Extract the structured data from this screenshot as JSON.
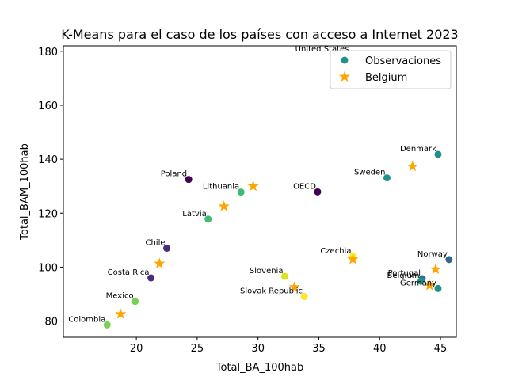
{
  "chart_data": {
    "type": "scatter",
    "title": "K-Means para el caso de los países con acceso a Internet 2023",
    "xlabel": "Total_BA_100hab",
    "ylabel": "Total_BAM_100hab",
    "xlim": [
      14,
      46.3
    ],
    "ylim": [
      74,
      182
    ],
    "xticks": [
      20,
      25,
      30,
      35,
      40,
      45
    ],
    "yticks": [
      80,
      100,
      120,
      140,
      160,
      180
    ],
    "grid": false,
    "legend": {
      "placement": "top-right",
      "entries": [
        {
          "label": "Observaciones",
          "marker": "circle",
          "color": "#21918c"
        },
        {
          "label": "Belgium",
          "marker": "star",
          "color": "#ffa500"
        }
      ]
    },
    "observations": [
      {
        "country": "Colombia",
        "x": 17.6,
        "y": 78.6,
        "color": "#7ad151"
      },
      {
        "country": "Mexico",
        "x": 19.9,
        "y": 87.3,
        "color": "#7ad151"
      },
      {
        "country": "Costa Rica",
        "x": 21.2,
        "y": 96.0,
        "color": "#472d7b"
      },
      {
        "country": "Chile",
        "x": 22.5,
        "y": 107.0,
        "color": "#472d7b"
      },
      {
        "country": "Latvia",
        "x": 25.9,
        "y": 117.8,
        "color": "#3fbc73"
      },
      {
        "country": "Lithuania",
        "x": 28.6,
        "y": 127.8,
        "color": "#3fbc73"
      },
      {
        "country": "Poland",
        "x": 24.3,
        "y": 132.5,
        "color": "#440154"
      },
      {
        "country": "Slovenia",
        "x": 32.2,
        "y": 96.6,
        "color": "#dde318"
      },
      {
        "country": "Slovak Republic",
        "x": 33.8,
        "y": 89.1,
        "color": "#fde725"
      },
      {
        "country": "OECD",
        "x": 34.9,
        "y": 127.9,
        "color": "#440154"
      },
      {
        "country": "United States",
        "x": 37.6,
        "y": 178.7,
        "color": "#ffffff"
      },
      {
        "country": "Czechia",
        "x": 37.8,
        "y": 104.0,
        "color": "#fde725"
      },
      {
        "country": "Sweden",
        "x": 40.6,
        "y": 133.1,
        "color": "#21918c"
      },
      {
        "country": "Portugal",
        "x": 43.5,
        "y": 95.7,
        "color": "#2c728e"
      },
      {
        "country": "Belgium",
        "x": 43.4,
        "y": 94.8,
        "color": "#21918c"
      },
      {
        "country": "Germany",
        "x": 44.8,
        "y": 92.1,
        "color": "#21918c"
      },
      {
        "country": "Denmark",
        "x": 44.8,
        "y": 141.8,
        "color": "#21918c"
      },
      {
        "country": "Norway",
        "x": 45.7,
        "y": 102.8,
        "color": "#31688e"
      }
    ],
    "centroids": [
      {
        "x": 18.7,
        "y": 82.6
      },
      {
        "x": 21.9,
        "y": 101.3
      },
      {
        "x": 27.2,
        "y": 122.5
      },
      {
        "x": 29.6,
        "y": 130.0
      },
      {
        "x": 33.0,
        "y": 92.6
      },
      {
        "x": 37.8,
        "y": 102.9
      },
      {
        "x": 42.7,
        "y": 137.3
      },
      {
        "x": 44.1,
        "y": 93.2
      },
      {
        "x": 44.6,
        "y": 99.2
      }
    ]
  }
}
